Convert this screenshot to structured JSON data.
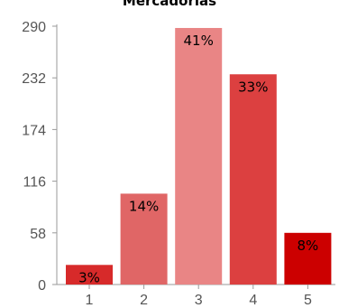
{
  "chart_data": {
    "type": "bar",
    "title": "Mercadorias",
    "xlabel": "",
    "ylabel": "",
    "categories": [
      "1",
      "2",
      "3",
      "4",
      "5"
    ],
    "values": [
      22,
      102,
      288,
      236,
      58
    ],
    "data_labels": [
      "3%",
      "14%",
      "41%",
      "33%",
      "8%"
    ],
    "bar_colors": [
      "#d72a2a",
      "#e06666",
      "#e98585",
      "#dc4040",
      "#cc0000"
    ],
    "y_ticks": [
      0,
      58,
      116,
      174,
      232,
      290
    ],
    "ylim": [
      0,
      290
    ],
    "grid": false,
    "legend": "none"
  }
}
